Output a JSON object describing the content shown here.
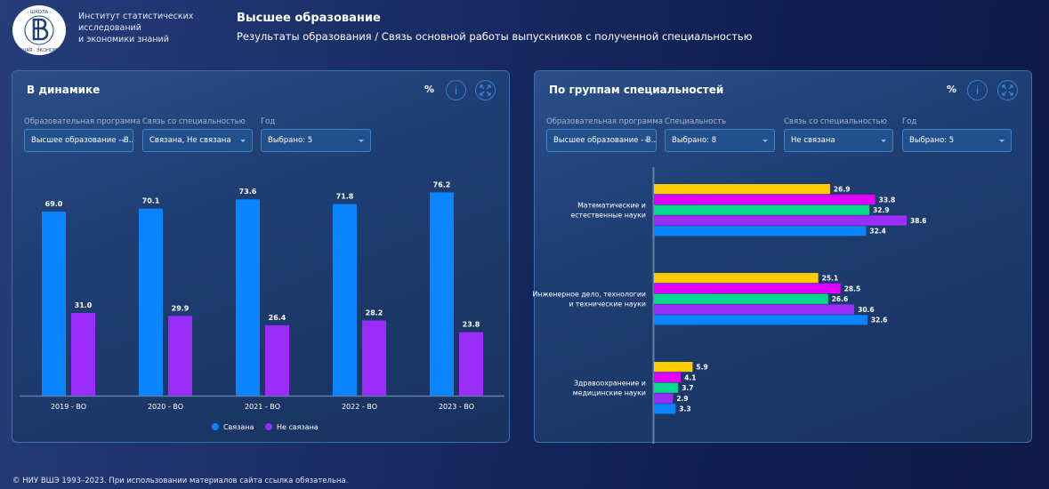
{
  "header": {
    "logo_icon": "hse-logo-icon",
    "institute_lines": [
      "Институт статистических",
      "исследований",
      "и экономики знаний"
    ],
    "title": "Высшее образование",
    "subtitle": "Результаты образования  / Связь основной работы выпускников с полученной специальностью"
  },
  "left_panel": {
    "title": "В динамике",
    "unit": "%",
    "info_icon": "info-icon",
    "expand_icon": "expand-icon",
    "filters": [
      {
        "label": "Образовательная программа",
        "value": "Высшее образование - В..."
      },
      {
        "label": "Связь со специальностью",
        "value": "Связана, Не связана"
      },
      {
        "label": "Год",
        "value": "Выбрано: 5"
      }
    ]
  },
  "right_panel": {
    "title": "По группам специальностей",
    "unit": "%",
    "info_icon": "info-icon",
    "expand_icon": "expand-icon",
    "filters": [
      {
        "label": "Образовательная программа",
        "value": "Высшее образование - В..."
      },
      {
        "label": "Специальность",
        "value": "Выбрано: 8"
      },
      {
        "label": "Связь со специальностью",
        "value": "Не связана"
      },
      {
        "label": "Год",
        "value": "Выбрано: 5"
      }
    ]
  },
  "chart_data": [
    {
      "type": "bar",
      "title": "В динамике",
      "xlabel": "",
      "ylabel": "%",
      "categories": [
        "2019 - ВО",
        "2020 - ВО",
        "2021 - ВО",
        "2022 - ВО",
        "2023 - ВО"
      ],
      "series": [
        {
          "name": "Связана",
          "color": "#0a84ff",
          "values": [
            69.0,
            70.1,
            73.6,
            71.8,
            76.2
          ]
        },
        {
          "name": "Не связана",
          "color": "#9b2cfa",
          "values": [
            31.0,
            29.9,
            26.4,
            28.2,
            23.8
          ]
        }
      ],
      "ylim": [
        0,
        80
      ],
      "grid": false,
      "legend": "bottom-center",
      "data_labels": true
    },
    {
      "type": "bar",
      "orientation": "horizontal",
      "title": "По группам специальностей",
      "xlabel": "",
      "ylabel": "",
      "categories": [
        "Математические и естественные науки",
        "Инженерное дело, технологии и технические науки",
        "Здравоохранение и медицинские науки"
      ],
      "category_lines": [
        [
          "Математические и",
          "естественные науки"
        ],
        [
          "Инженерное дело, технологии",
          "и технические науки"
        ],
        [
          "Здравоохранение и",
          "медицинские науки"
        ]
      ],
      "series": [
        {
          "name": "series-1",
          "color": "#ffcc00",
          "values": [
            26.9,
            25.1,
            5.9
          ]
        },
        {
          "name": "series-2",
          "color": "#e100ff",
          "values": [
            33.8,
            28.5,
            4.1
          ]
        },
        {
          "name": "series-3",
          "color": "#05d98e",
          "values": [
            32.9,
            26.6,
            3.7
          ]
        },
        {
          "name": "series-4",
          "color": "#9b2cfa",
          "values": [
            38.6,
            30.6,
            2.9
          ]
        },
        {
          "name": "series-5",
          "color": "#0a84ff",
          "values": [
            32.4,
            32.6,
            3.3
          ]
        }
      ],
      "xlim": [
        0,
        40
      ],
      "grid": false,
      "legend": "none",
      "data_labels": true
    }
  ],
  "footer": {
    "copyright": "© НИУ ВШЭ 1993–2023. При использовании материалов сайта ссылка обязательна."
  }
}
